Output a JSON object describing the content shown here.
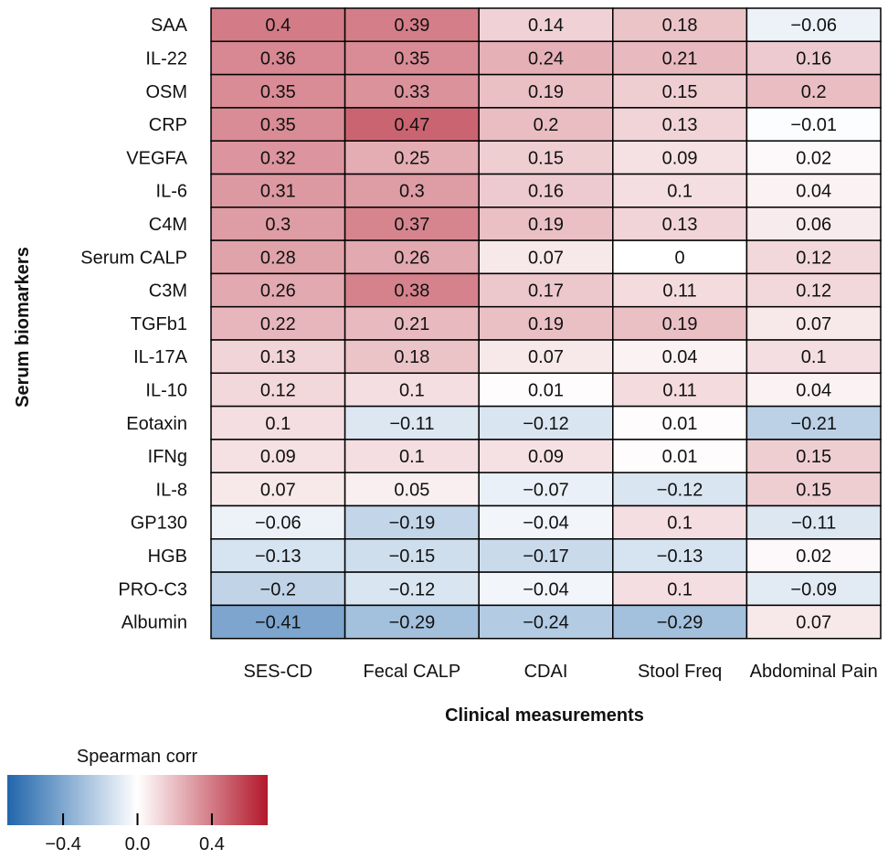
{
  "chart_data": {
    "type": "heatmap",
    "xlabel": "Clinical measurements",
    "ylabel": "Serum biomarkers",
    "x_categories": [
      "SES-CD",
      "Fecal CALP",
      "CDAI",
      "Stool Freq",
      "Abdominal Pain"
    ],
    "y_categories": [
      "SAA",
      "IL-22",
      "OSM",
      "CRP",
      "VEGFA",
      "IL-6",
      "C4M",
      "Serum CALP",
      "C3M",
      "TGFb1",
      "IL-17A",
      "IL-10",
      "Eotaxin",
      "IFNg",
      "IL-8",
      "GP130",
      "HGB",
      "PRO-C3",
      "Albumin"
    ],
    "values": [
      [
        0.4,
        0.39,
        0.14,
        0.18,
        -0.06
      ],
      [
        0.36,
        0.35,
        0.24,
        0.21,
        0.16
      ],
      [
        0.35,
        0.33,
        0.19,
        0.15,
        0.2
      ],
      [
        0.35,
        0.47,
        0.2,
        0.13,
        -0.01
      ],
      [
        0.32,
        0.25,
        0.15,
        0.09,
        0.02
      ],
      [
        0.31,
        0.3,
        0.16,
        0.1,
        0.04
      ],
      [
        0.3,
        0.37,
        0.19,
        0.13,
        0.06
      ],
      [
        0.28,
        0.26,
        0.07,
        0,
        0.12
      ],
      [
        0.26,
        0.38,
        0.17,
        0.11,
        0.12
      ],
      [
        0.22,
        0.21,
        0.19,
        0.19,
        0.07
      ],
      [
        0.13,
        0.18,
        0.07,
        0.04,
        0.1
      ],
      [
        0.12,
        0.1,
        0.01,
        0.11,
        0.04
      ],
      [
        0.1,
        -0.11,
        -0.12,
        0.01,
        -0.21
      ],
      [
        0.09,
        0.1,
        0.09,
        0.01,
        0.15
      ],
      [
        0.07,
        0.05,
        -0.07,
        -0.12,
        0.15
      ],
      [
        -0.06,
        -0.19,
        -0.04,
        0.1,
        -0.11
      ],
      [
        -0.13,
        -0.15,
        -0.17,
        -0.13,
        0.02
      ],
      [
        -0.2,
        -0.12,
        -0.04,
        0.1,
        -0.09
      ],
      [
        -0.41,
        -0.29,
        -0.24,
        -0.29,
        0.07
      ]
    ],
    "legend": {
      "title": "Spearman corr",
      "range": [
        -0.7,
        0.7
      ],
      "ticks": [
        -0.4,
        0.0,
        0.4
      ],
      "tick_labels": [
        "−0.4",
        "0.0",
        "0.4"
      ],
      "colors": {
        "negative": "#2166ac",
        "neutral": "#ffffff",
        "positive": "#b2182b"
      }
    }
  }
}
